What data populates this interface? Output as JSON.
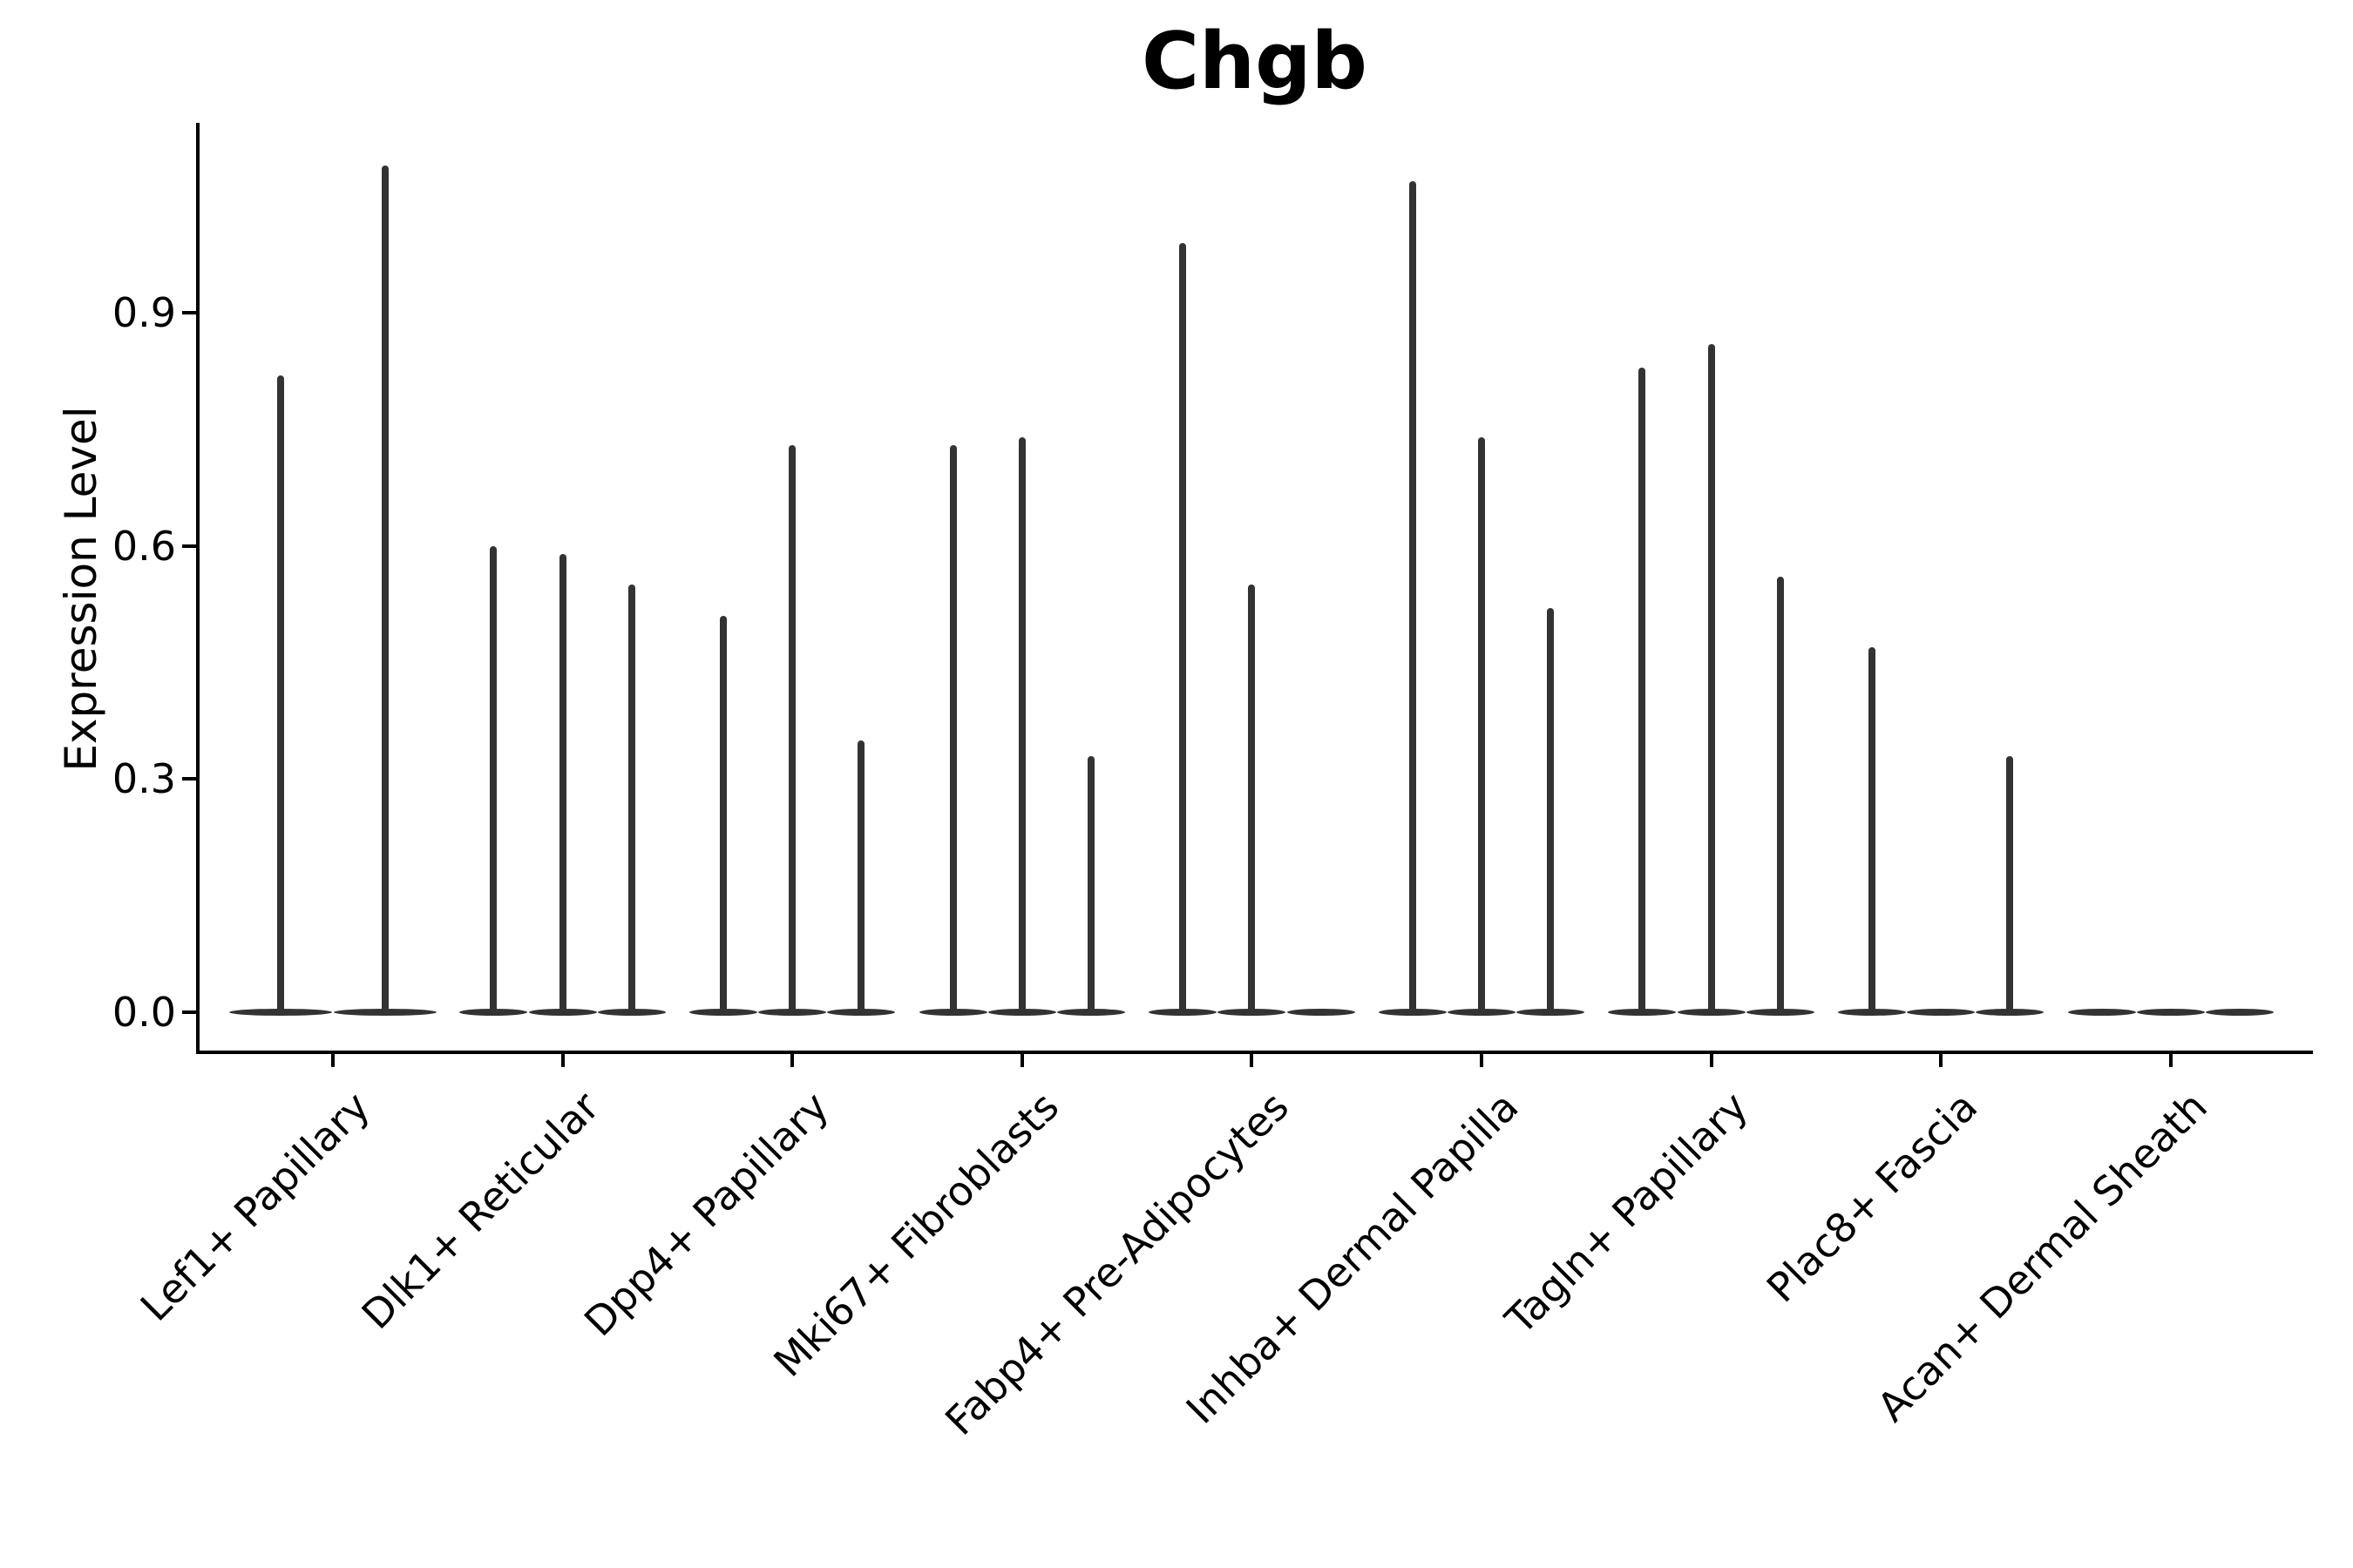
{
  "figure": {
    "title": "Chgb",
    "background_color": "#ffffff",
    "axis_color": "#000000",
    "violin_color": "#333333",
    "text_color": "#000000"
  },
  "chart_data": {
    "type": "violin",
    "title": "Chgb",
    "xlabel": "",
    "ylabel": "Expression Level",
    "yticks": [
      "0.0",
      "0.3",
      "0.6",
      "0.9"
    ],
    "ytick_values": [
      0.0,
      0.3,
      0.6,
      0.9
    ],
    "ylim": [
      -0.05,
      1.15
    ],
    "grid": false,
    "legend": "none",
    "categories": [
      "Lef1+ Papillary",
      "Dlk1+ Reticular",
      "Dpp4+ Papillary",
      "Mki67+ Fibroblasts",
      "Fabp4+ Pre-Adipocytes",
      "Inhba+ Dermal Papilla",
      "Tagln+ Papillary",
      "Plac8+ Fascia",
      "Acan+ Dermal Sheath"
    ],
    "description": "Each category shows thin violins collapsed at 0 with narrow spikes; values below are the maximum expression level reached by each violin spike (0 = flat violin with no spike).",
    "groups": [
      {
        "category": "Lef1+ Papillary",
        "violin_max_values": [
          0.82,
          1.09
        ]
      },
      {
        "category": "Dlk1+ Reticular",
        "violin_max_values": [
          0.6,
          0.59,
          0.55
        ]
      },
      {
        "category": "Dpp4+ Papillary",
        "violin_max_values": [
          0.51,
          0.73,
          0.35
        ]
      },
      {
        "category": "Mki67+ Fibroblasts",
        "violin_max_values": [
          0.73,
          0.74,
          0.33
        ]
      },
      {
        "category": "Fabp4+ Pre-Adipocytes",
        "violin_max_values": [
          0.99,
          0.55,
          0.0
        ]
      },
      {
        "category": "Inhba+ Dermal Papilla",
        "violin_max_values": [
          1.07,
          0.74,
          0.52
        ]
      },
      {
        "category": "Tagln+ Papillary",
        "violin_max_values": [
          0.83,
          0.86,
          0.56
        ]
      },
      {
        "category": "Plac8+ Fascia",
        "violin_max_values": [
          0.47,
          0.0,
          0.33
        ]
      },
      {
        "category": "Acan+ Dermal Sheath",
        "violin_max_values": [
          0.0,
          0.0,
          0.0
        ]
      }
    ]
  }
}
